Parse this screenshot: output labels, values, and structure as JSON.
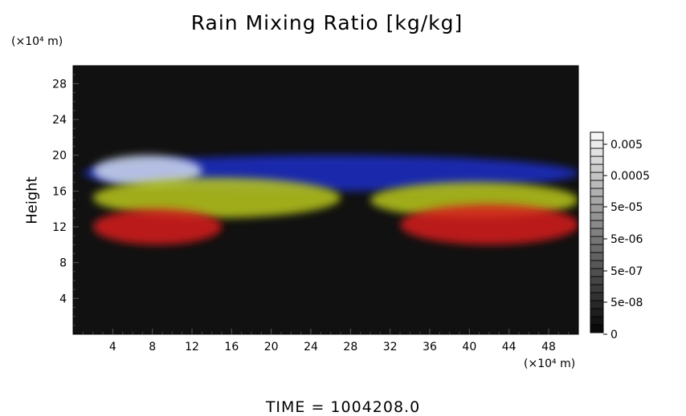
{
  "chart_data": {
    "type": "heatmap",
    "title": "Rain Mixing Ratio [kg/kg]",
    "ylabel": "Height",
    "xlabel": "",
    "y_unit": "(×10⁴ m)",
    "x_unit": "(×10⁴ m)",
    "xlim": [
      0,
      51
    ],
    "ylim": [
      0,
      30
    ],
    "x_ticks": [
      4,
      8,
      12,
      16,
      20,
      24,
      28,
      32,
      36,
      40,
      44,
      48
    ],
    "y_ticks": [
      4,
      8,
      12,
      16,
      20,
      24,
      28
    ],
    "colorbar": {
      "labels": [
        "0.005",
        "0.0005",
        "5e-05",
        "5e-06",
        "5e-07",
        "5e-08",
        "0"
      ]
    },
    "background_color": "#111111",
    "regions": [
      {
        "color": "#1e2ec8",
        "x_range": [
          1,
          51
        ],
        "y_range": [
          16,
          20
        ]
      },
      {
        "color": "#cfd9ee",
        "x_range": [
          2,
          13
        ],
        "y_range": [
          16.5,
          20
        ]
      },
      {
        "color": "#b9c81a",
        "x_range": [
          2,
          27
        ],
        "y_range": [
          13,
          17.5
        ]
      },
      {
        "color": "#d81a1a",
        "x_range": [
          2,
          15
        ],
        "y_range": [
          10,
          14
        ]
      },
      {
        "color": "#b9c81a",
        "x_range": [
          30,
          51
        ],
        "y_range": [
          13,
          17
        ]
      },
      {
        "color": "#d81a1a",
        "x_range": [
          33,
          51
        ],
        "y_range": [
          10,
          14.5
        ]
      }
    ]
  },
  "footer": {
    "time_label": "TIME = 1004208.0"
  }
}
